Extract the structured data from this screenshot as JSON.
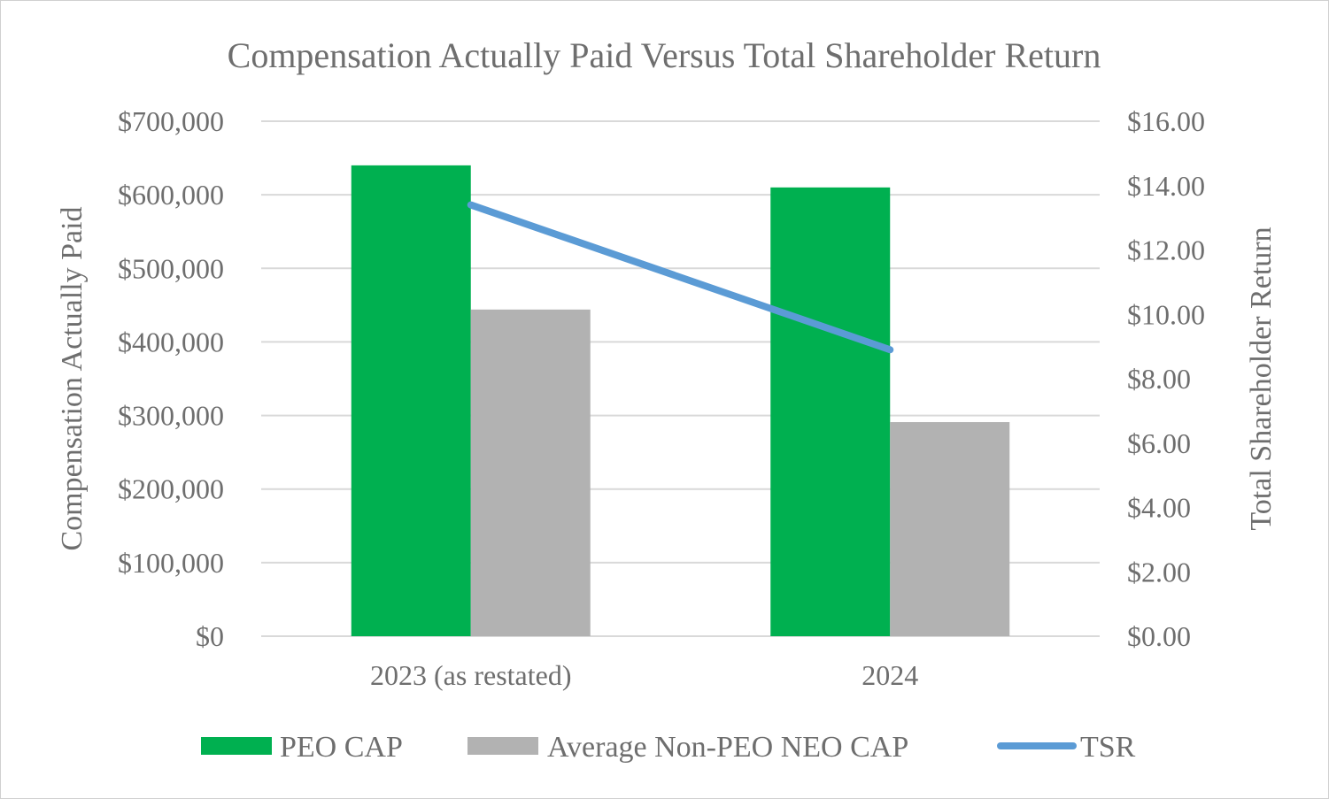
{
  "chart_data": {
    "type": "bar",
    "title": "Compensation Actually Paid Versus Total Shareholder Return",
    "categories": [
      "2023 (as restated)",
      "2024"
    ],
    "ylabel": "Compensation Actually Paid",
    "y2label": "Total Shareholder Return",
    "ylim": [
      0,
      700000
    ],
    "y2lim": [
      0,
      16
    ],
    "yticks": [
      "$0",
      "$100,000",
      "$200,000",
      "$300,000",
      "$400,000",
      "$500,000",
      "$600,000",
      "$700,000"
    ],
    "y2ticks": [
      "$0.00",
      "$2.00",
      "$4.00",
      "$6.00",
      "$8.00",
      "$10.00",
      "$12.00",
      "$14.00",
      "$16.00"
    ],
    "grid": true,
    "legend_position": "bottom",
    "series": [
      {
        "name": "PEO CAP",
        "type": "bar",
        "axis": "left",
        "color": "#00b050",
        "values": [
          640000,
          610000
        ]
      },
      {
        "name": "Average Non-PEO NEO CAP",
        "type": "bar",
        "axis": "left",
        "color": "#b2b2b2",
        "values": [
          444000,
          291000
        ]
      },
      {
        "name": "TSR",
        "type": "line",
        "axis": "right",
        "color": "#5b9bd5",
        "values": [
          13.4,
          8.9
        ]
      }
    ]
  }
}
